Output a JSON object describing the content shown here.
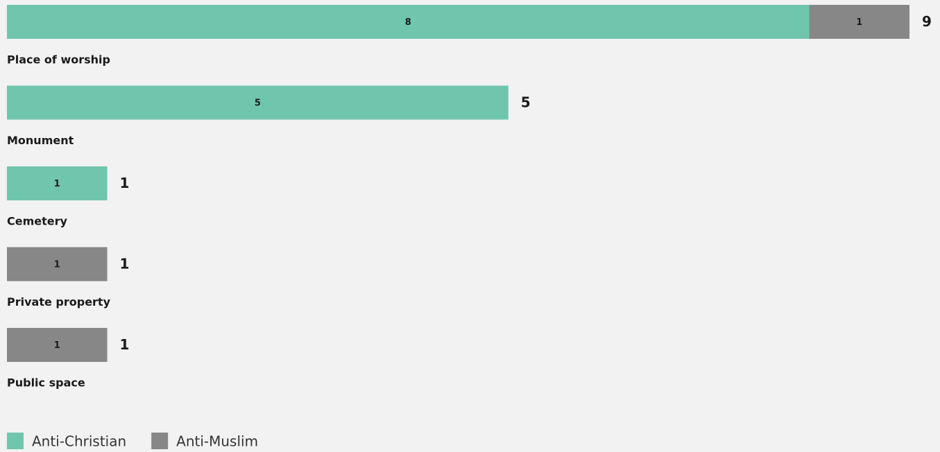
{
  "chart_data": {
    "type": "stacked-bar-horizontal",
    "categories": [
      "Place of worship",
      "Monument",
      "Cemetery",
      "Private property",
      "Public space"
    ],
    "series": [
      {
        "name": "Anti-Christian",
        "color": "#70c5ad",
        "values": [
          8,
          5,
          1,
          null,
          null
        ]
      },
      {
        "name": "Anti-Muslim",
        "color": "#878787",
        "values": [
          1,
          null,
          null,
          1,
          1
        ]
      }
    ],
    "totals": [
      9,
      5,
      1,
      1,
      1
    ],
    "xlim": [
      0,
      9
    ]
  }
}
